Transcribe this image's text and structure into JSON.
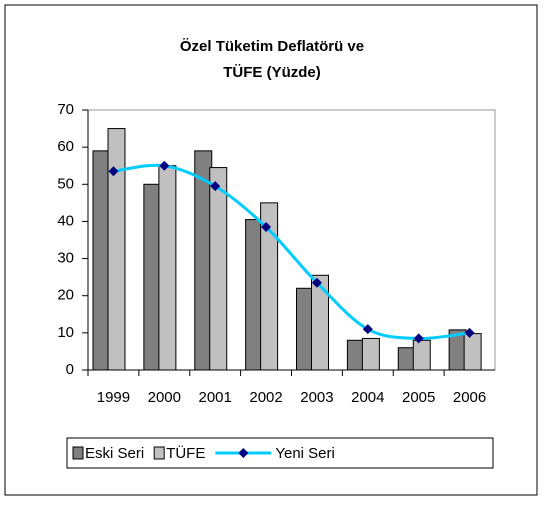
{
  "chart_data": {
    "type": "bar",
    "title": [
      "Özel Tüketim Deflatörü ve",
      "TÜFE (Yüzde)"
    ],
    "categories": [
      "1999",
      "2000",
      "2001",
      "2002",
      "2003",
      "2004",
      "2005",
      "2006"
    ],
    "series": [
      {
        "name": "Eski Seri",
        "color": "#808080",
        "values": [
          59,
          50,
          59,
          40.5,
          22,
          8,
          6,
          10.8
        ]
      },
      {
        "name": "TÜFE",
        "color": "#c0c0c0",
        "values": [
          65,
          55,
          54.5,
          45,
          25.5,
          8.5,
          8,
          9.8
        ]
      },
      {
        "name": "Yeni Seri",
        "type": "line",
        "color": "#00ccff",
        "marker_color": "#000080",
        "values": [
          53.5,
          55,
          49.5,
          38.5,
          23.5,
          11,
          8.5,
          10
        ]
      }
    ],
    "ylim": [
      0,
      70
    ],
    "yticks": [
      0,
      10,
      20,
      30,
      40,
      50,
      60,
      70
    ],
    "legend": "bottom"
  }
}
